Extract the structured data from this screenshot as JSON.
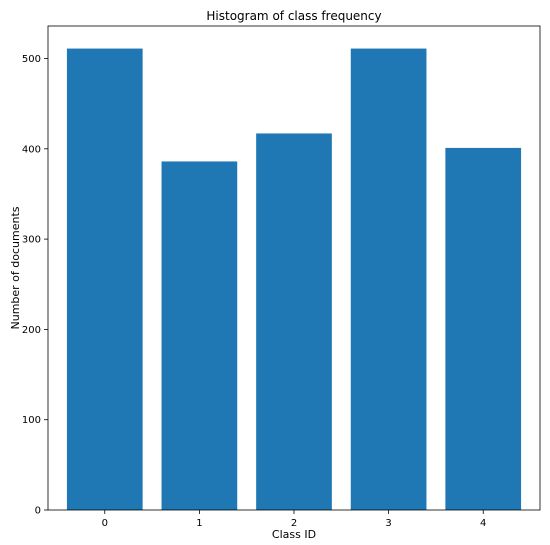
{
  "chart_data": {
    "type": "bar",
    "title": "Histogram of class frequency",
    "xlabel": "Class ID",
    "ylabel": "Number of documents",
    "categories": [
      "0",
      "1",
      "2",
      "3",
      "4"
    ],
    "values": [
      511,
      386,
      417,
      511,
      401
    ],
    "ylim": [
      0,
      536
    ],
    "yticks": [
      0,
      100,
      200,
      300,
      400,
      500
    ],
    "xlim": [
      -0.6,
      4.6
    ],
    "bar_color": "#1f77b4",
    "grid": false,
    "legend": "none"
  }
}
